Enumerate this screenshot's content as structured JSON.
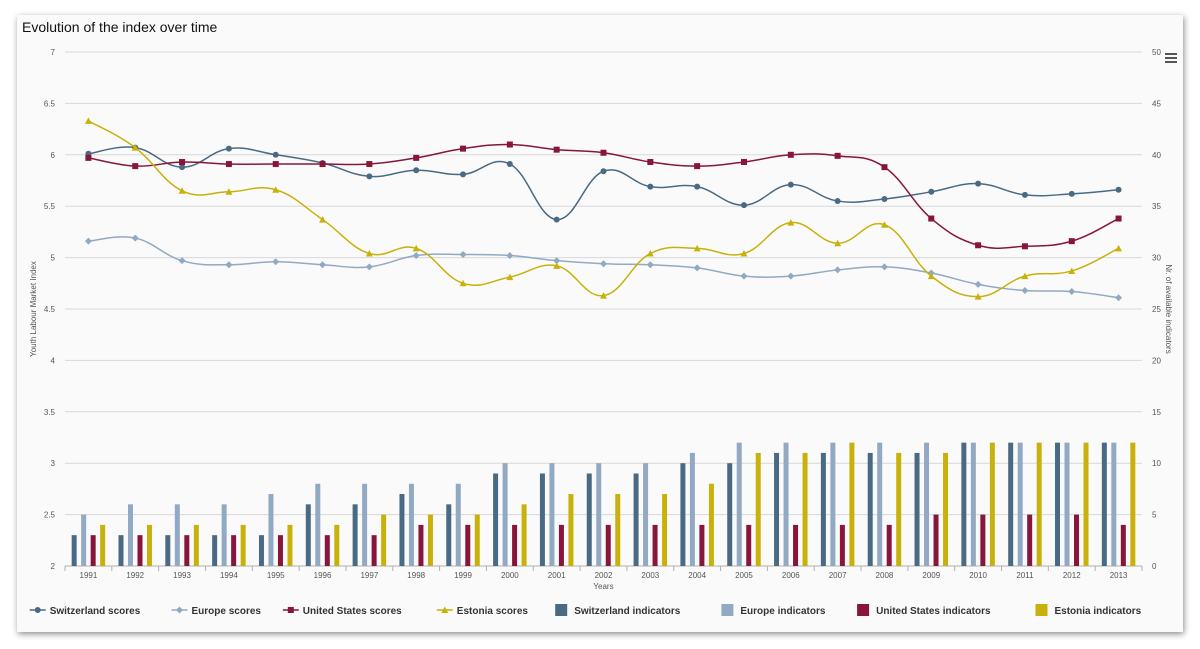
{
  "chart_title": "Evolution of the index over time",
  "menu_icon": "hamburger-menu-icon",
  "chart_data": {
    "type": "line",
    "title": "Evolution of the index over time",
    "xlabel": "Years",
    "ylabel": "Youth Labour Market Index",
    "y2label": "Nr. of available indicators",
    "ylim": [
      2,
      7
    ],
    "y2lim": [
      0,
      50
    ],
    "yticks": [
      "2",
      "2.5",
      "3",
      "3.5",
      "4",
      "4.5",
      "5",
      "5.5",
      "6",
      "6.5",
      "7"
    ],
    "y2ticks": [
      "0",
      "5",
      "10",
      "15",
      "20",
      "25",
      "30",
      "35",
      "40",
      "45",
      "50"
    ],
    "categories": [
      "1991",
      "1992",
      "1993",
      "1994",
      "1995",
      "1996",
      "1997",
      "1998",
      "1999",
      "2000",
      "2001",
      "2002",
      "2003",
      "2004",
      "2005",
      "2006",
      "2007",
      "2008",
      "2009",
      "2010",
      "2011",
      "2012",
      "2013"
    ],
    "grid": true,
    "legend_position": "bottom",
    "series": [
      {
        "name": "Switzerland scores",
        "kind": "line",
        "axis": "left",
        "color": "#4a6a84",
        "marker": "circle",
        "values": [
          6.01,
          6.07,
          5.88,
          6.06,
          6.0,
          5.92,
          5.79,
          5.85,
          5.81,
          5.91,
          5.37,
          5.84,
          5.69,
          5.69,
          5.51,
          5.71,
          5.55,
          5.57,
          5.64,
          5.72,
          5.61,
          5.62,
          5.66
        ]
      },
      {
        "name": "Europe scores",
        "kind": "line",
        "axis": "left",
        "color": "#91a9c2",
        "marker": "diamond",
        "values": [
          5.16,
          5.19,
          4.97,
          4.93,
          4.96,
          4.93,
          4.91,
          5.02,
          5.03,
          5.02,
          4.97,
          4.94,
          4.93,
          4.9,
          4.82,
          4.82,
          4.88,
          4.91,
          4.85,
          4.74,
          4.68,
          4.67,
          4.61
        ]
      },
      {
        "name": "United States scores",
        "kind": "line",
        "axis": "left",
        "color": "#87163a",
        "marker": "square",
        "values": [
          5.97,
          5.89,
          5.93,
          5.91,
          5.91,
          5.91,
          5.91,
          5.97,
          6.06,
          6.1,
          6.05,
          6.02,
          5.93,
          5.89,
          5.93,
          6.0,
          5.99,
          5.88,
          5.38,
          5.12,
          5.11,
          5.16,
          5.38
        ]
      },
      {
        "name": "Estonia scores",
        "kind": "line",
        "axis": "left",
        "color": "#c8b10a",
        "marker": "triangle",
        "values": [
          6.33,
          6.07,
          5.65,
          5.64,
          5.66,
          5.37,
          5.04,
          5.09,
          4.75,
          4.81,
          4.92,
          4.63,
          5.04,
          5.09,
          5.04,
          5.34,
          5.14,
          5.32,
          4.82,
          4.62,
          4.82,
          4.87,
          5.09
        ]
      },
      {
        "name": "Switzerland indicators",
        "kind": "bar",
        "axis": "right",
        "color": "#4a6a84",
        "values": [
          3,
          3,
          3,
          3,
          3,
          6,
          6,
          7,
          6,
          9,
          9,
          9,
          9,
          10,
          10,
          11,
          11,
          11,
          11,
          12,
          12,
          12,
          12
        ]
      },
      {
        "name": "Europe indicators",
        "kind": "bar",
        "axis": "right",
        "color": "#91a9c2",
        "values": [
          5,
          6,
          6,
          6,
          7,
          8,
          8,
          8,
          8,
          10,
          10,
          10,
          10,
          11,
          12,
          12,
          12,
          12,
          12,
          12,
          12,
          12,
          12
        ]
      },
      {
        "name": "United States indicators",
        "kind": "bar",
        "axis": "right",
        "color": "#87163a",
        "values": [
          3,
          3,
          3,
          3,
          3,
          3,
          3,
          4,
          4,
          4,
          4,
          4,
          4,
          4,
          4,
          4,
          4,
          4,
          5,
          5,
          5,
          5,
          4
        ]
      },
      {
        "name": "Estonia indicators",
        "kind": "bar",
        "axis": "right",
        "color": "#c8b10a",
        "values": [
          4,
          4,
          4,
          4,
          4,
          4,
          5,
          5,
          5,
          6,
          7,
          7,
          7,
          8,
          11,
          11,
          12,
          11,
          11,
          12,
          12,
          12,
          12
        ]
      }
    ]
  }
}
